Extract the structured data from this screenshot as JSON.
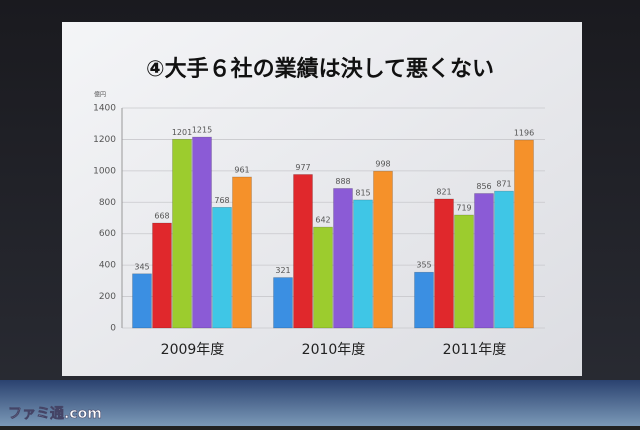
{
  "chart_data": {
    "type": "bar",
    "title": "④大手６社の業績は決して悪くない",
    "y_label": "億円",
    "categories": [
      "2009年度",
      "2010年度",
      "2011年度"
    ],
    "series": [
      {
        "color": "#3b8fe2",
        "values": [
          345,
          321,
          355
        ]
      },
      {
        "color": "#e0282c",
        "values": [
          668,
          977,
          821
        ]
      },
      {
        "color": "#9ccc2e",
        "values": [
          1201,
          642,
          719
        ]
      },
      {
        "color": "#8b5bd6",
        "values": [
          1215,
          888,
          856
        ]
      },
      {
        "color": "#3fc6e6",
        "values": [
          768,
          815,
          871
        ]
      },
      {
        "color": "#f5912a",
        "values": [
          961,
          998,
          1196
        ]
      }
    ],
    "ylim": [
      0,
      1400
    ],
    "yticks": [
      0,
      200,
      400,
      600,
      800,
      1000,
      1200,
      1400
    ],
    "grid": true
  },
  "watermark": "ファミ通.com"
}
